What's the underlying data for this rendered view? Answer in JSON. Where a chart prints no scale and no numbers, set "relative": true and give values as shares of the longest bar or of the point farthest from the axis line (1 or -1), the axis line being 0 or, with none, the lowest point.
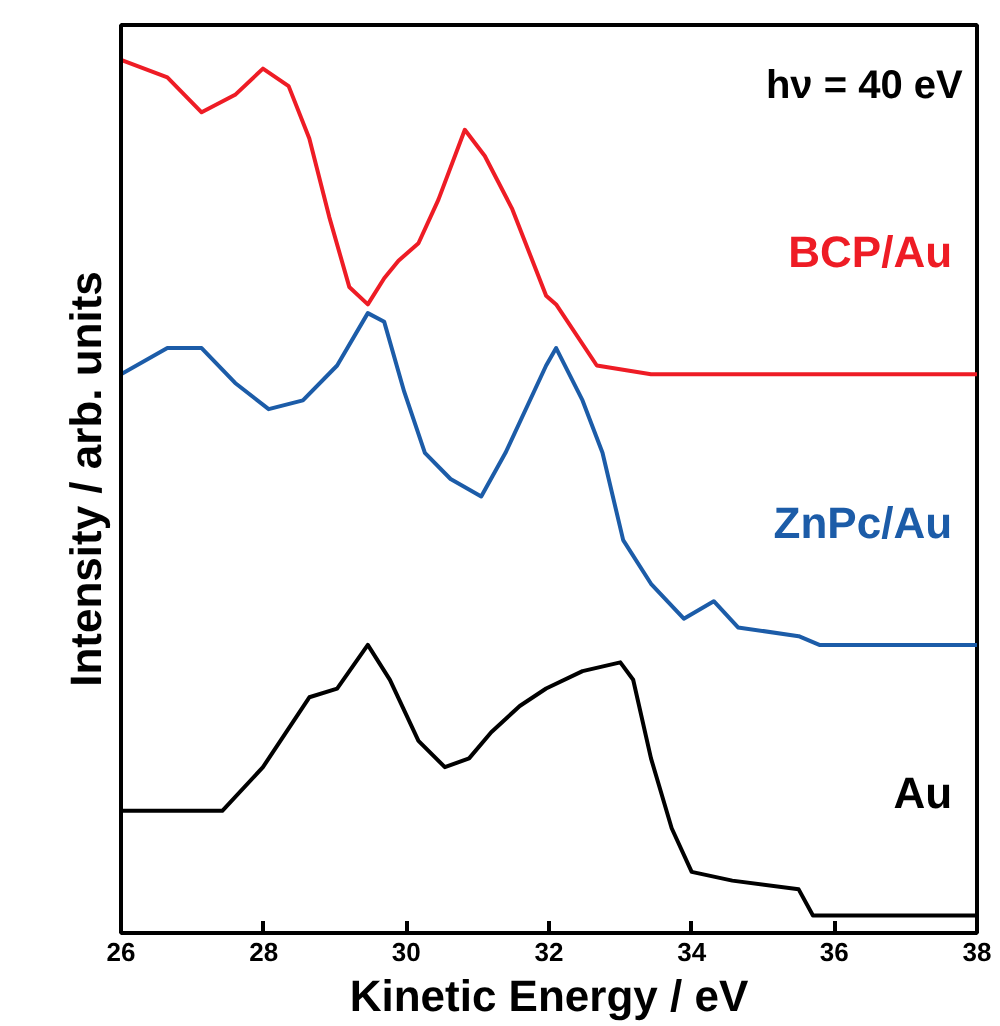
{
  "chart_data": {
    "type": "line",
    "relative": true,
    "xlabel": "Kinetic Energy / eV",
    "ylabel": "Intensity / arb. units",
    "annotations": [
      "hν = 40 eV"
    ],
    "xlim": [
      26,
      38
    ],
    "xticks": [
      26,
      28,
      30,
      32,
      34,
      36,
      38
    ],
    "grid": false,
    "marker": "none",
    "line_style": "solid",
    "series": [
      {
        "name": "BCP/Au",
        "color": "#ee1c25",
        "x": [
          26,
          26.65,
          27.13,
          27.6,
          27.99,
          28.35,
          28.64,
          28.92,
          29.2,
          29.46,
          29.69,
          29.89,
          30.17,
          30.45,
          30.82,
          31.1,
          31.48,
          31.96,
          32.1,
          32.67,
          33.43,
          38
        ],
        "values": [
          1.0,
          0.98,
          0.94,
          0.96,
          0.99,
          0.97,
          0.91,
          0.82,
          0.74,
          0.72,
          0.75,
          0.77,
          0.79,
          0.84,
          0.92,
          0.89,
          0.83,
          0.73,
          0.72,
          0.65,
          0.64,
          0.64
        ]
      },
      {
        "name": "ZnPc/Au",
        "color": "#1c5ca8",
        "x": [
          26,
          26.65,
          27.13,
          27.6,
          28.07,
          28.55,
          29.03,
          29.46,
          29.69,
          29.97,
          30.26,
          30.62,
          31.05,
          31.39,
          31.96,
          32.1,
          32.47,
          32.75,
          33.04,
          33.43,
          33.89,
          34.31,
          34.65,
          35.5,
          35.79,
          38
        ],
        "values": [
          0.64,
          0.67,
          0.67,
          0.63,
          0.6,
          0.61,
          0.65,
          0.71,
          0.7,
          0.62,
          0.55,
          0.52,
          0.5,
          0.55,
          0.65,
          0.67,
          0.61,
          0.55,
          0.45,
          0.4,
          0.36,
          0.38,
          0.35,
          0.34,
          0.33,
          0.33
        ]
      },
      {
        "name": "Au",
        "color": "#000000",
        "x": [
          26,
          26.94,
          27.42,
          27.99,
          28.64,
          29.03,
          29.46,
          29.77,
          30.17,
          30.54,
          30.88,
          31.19,
          31.59,
          31.96,
          32.47,
          33.0,
          33.18,
          33.43,
          33.72,
          34.0,
          34.57,
          35.5,
          35.7,
          36.07,
          38
        ],
        "values": [
          0.14,
          0.14,
          0.14,
          0.19,
          0.27,
          0.28,
          0.33,
          0.29,
          0.22,
          0.19,
          0.2,
          0.23,
          0.26,
          0.28,
          0.3,
          0.31,
          0.29,
          0.2,
          0.12,
          0.07,
          0.06,
          0.05,
          0.02,
          0.02,
          0.02
        ]
      }
    ]
  }
}
